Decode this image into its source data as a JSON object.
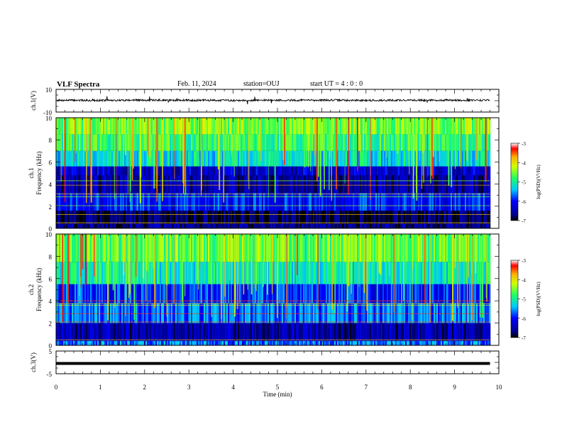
{
  "header": {
    "title": "VLF Spectra",
    "date": "Feb. 11, 2024",
    "station": "station=OUJ",
    "start": "start UT =  4 : 0 : 0"
  },
  "chart_data": [
    {
      "type": "line",
      "panel": "ch1-waveform",
      "ylabel": "ch.1(V)",
      "ylim": [
        -10,
        10
      ],
      "yticks": [
        "10",
        "-10"
      ],
      "x": [
        0,
        1,
        2,
        3,
        4,
        5,
        6,
        7,
        8,
        9,
        9.8
      ],
      "series": [
        {
          "values": [
            0.4,
            0.3,
            0.5,
            0.4,
            0.3,
            0.4,
            0.5,
            0.3,
            0.4,
            0.4,
            0.4
          ]
        }
      ],
      "xlim": [
        0,
        10
      ]
    },
    {
      "type": "heatmap",
      "panel": "ch1-spectrogram",
      "ylabel": "ch.1\nFrequency (kHz)",
      "ylim": [
        0,
        10
      ],
      "yticks": [
        "0",
        "2",
        "4",
        "6",
        "8",
        "10"
      ],
      "xlim": [
        0,
        10
      ],
      "data_end_min": 9.8,
      "colorbar": {
        "label": "log(PSD)(V²/Hz)",
        "range": [
          -7,
          -3
        ],
        "ticks": [
          "-3",
          "-4",
          "-5",
          "-6",
          "-7"
        ]
      },
      "band_levels": [
        {
          "f_lo": 0,
          "f_hi": 0.4,
          "level": -6.6
        },
        {
          "f_lo": 0.4,
          "f_hi": 1.6,
          "level": -6.8
        },
        {
          "f_lo": 1.6,
          "f_hi": 3.2,
          "level": -6.0
        },
        {
          "f_lo": 3.2,
          "f_hi": 4.8,
          "level": -6.5
        },
        {
          "f_lo": 4.8,
          "f_hi": 5.6,
          "level": -6.3
        },
        {
          "f_lo": 5.6,
          "f_hi": 7.0,
          "level": -5.2
        },
        {
          "f_lo": 7.0,
          "f_hi": 8.5,
          "level": -4.8
        },
        {
          "f_lo": 8.5,
          "f_hi": 10,
          "level": -4.5
        }
      ],
      "tone_lines_khz": [
        0.5,
        1.25,
        2.05,
        2.85,
        3.1,
        3.9,
        4.3
      ]
    },
    {
      "type": "heatmap",
      "panel": "ch2-spectrogram",
      "ylabel": "ch.2\nFrequency (kHz)",
      "ylim": [
        0,
        10
      ],
      "yticks": [
        "0",
        "2",
        "4",
        "6",
        "8",
        "10"
      ],
      "xlim": [
        0,
        10
      ],
      "data_end_min": 9.8,
      "colorbar": {
        "label": "log(PSD)(V²/Hz)",
        "range": [
          -7,
          -3
        ],
        "ticks": [
          "-3",
          "-4",
          "-5",
          "-6",
          "-7"
        ]
      },
      "band_levels": [
        {
          "f_lo": 0,
          "f_hi": 0.4,
          "level": -5.6
        },
        {
          "f_lo": 0.4,
          "f_hi": 2.0,
          "level": -6.5
        },
        {
          "f_lo": 2.0,
          "f_hi": 3.8,
          "level": -5.7
        },
        {
          "f_lo": 3.8,
          "f_hi": 5.5,
          "level": -5.9
        },
        {
          "f_lo": 5.5,
          "f_hi": 7.5,
          "level": -5.1
        },
        {
          "f_lo": 7.5,
          "f_hi": 10,
          "level": -4.6
        }
      ],
      "tone_lines_khz": [
        0.5,
        2.1,
        2.85,
        3.6,
        3.75,
        4.0
      ]
    },
    {
      "type": "line",
      "panel": "ch3-waveform",
      "ylabel": "ch.3(V)",
      "ylim": [
        -5,
        5
      ],
      "yticks": [
        "5",
        "-5"
      ],
      "x": [
        0,
        9.8
      ],
      "series": [
        {
          "values": [
            0,
            0
          ]
        }
      ],
      "xlim": [
        0,
        10
      ],
      "xlabel": "Time (min)",
      "xticks": [
        "0",
        "1",
        "2",
        "3",
        "4",
        "5",
        "6",
        "7",
        "8",
        "9",
        "10"
      ]
    }
  ]
}
